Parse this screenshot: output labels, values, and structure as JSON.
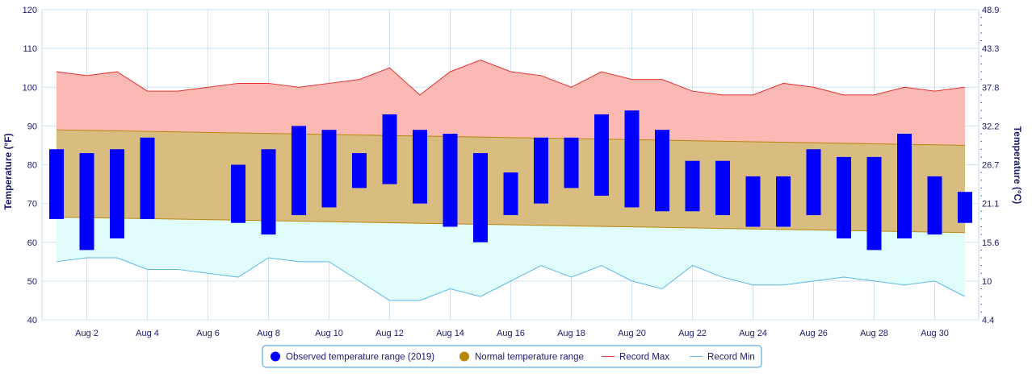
{
  "chart_data": {
    "type": "bar",
    "title": "",
    "x_labels": [
      "Aug 2",
      "Aug 4",
      "Aug 6",
      "Aug 8",
      "Aug 10",
      "Aug 12",
      "Aug 14",
      "Aug 16",
      "Aug 18",
      "Aug 20",
      "Aug 22",
      "Aug 24",
      "Aug 26",
      "Aug 28",
      "Aug 30"
    ],
    "x_label_days": [
      2,
      4,
      6,
      8,
      10,
      12,
      14,
      16,
      18,
      20,
      22,
      24,
      26,
      28,
      30
    ],
    "days": [
      1,
      2,
      3,
      4,
      5,
      6,
      7,
      8,
      9,
      10,
      11,
      12,
      13,
      14,
      15,
      16,
      17,
      18,
      19,
      20,
      21,
      22,
      23,
      24,
      25,
      26,
      27,
      28,
      29,
      30,
      31
    ],
    "yleft": {
      "label": "Temperature (°F)",
      "range": [
        40,
        120
      ],
      "ticks": [
        40,
        50,
        60,
        70,
        80,
        90,
        100,
        110,
        120
      ]
    },
    "yright": {
      "label": "Temperature (°C)",
      "ticks": [
        "4.4",
        "10",
        "15.6",
        "21.1",
        "26.7",
        "32.2",
        "37.8",
        "43.3",
        "48.9"
      ]
    },
    "series": [
      {
        "name": "Observed temperature range (2019)",
        "type": "columnrange",
        "color": "#0000ff",
        "data": [
          [
            66,
            84
          ],
          [
            58,
            83
          ],
          [
            61,
            84
          ],
          [
            66,
            87
          ],
          null,
          null,
          [
            65,
            80
          ],
          [
            62,
            84
          ],
          [
            67,
            90
          ],
          [
            69,
            89
          ],
          [
            74,
            83
          ],
          [
            75,
            93
          ],
          [
            70,
            89
          ],
          [
            64,
            88
          ],
          [
            60,
            83
          ],
          [
            67,
            78
          ],
          [
            70,
            87
          ],
          [
            74,
            87
          ],
          [
            72,
            93
          ],
          [
            69,
            94
          ],
          [
            68,
            89
          ],
          [
            68,
            81
          ],
          [
            67,
            81
          ],
          [
            64,
            77
          ],
          [
            64,
            77
          ],
          [
            67,
            84
          ],
          [
            61,
            82
          ],
          [
            58,
            82
          ],
          [
            61,
            88
          ],
          [
            62,
            77
          ],
          [
            65,
            73
          ]
        ]
      },
      {
        "name": "Normal temperature range",
        "type": "arearange",
        "color": "#b8860b",
        "low_start": 66.5,
        "low_end": 62.5,
        "high_start": 89,
        "high_end": 85
      },
      {
        "name": "Record Max",
        "type": "line",
        "color": "#e8312f",
        "data": [
          104,
          103,
          104,
          99,
          99,
          100,
          101,
          101,
          100,
          101,
          102,
          105,
          98,
          104,
          107,
          104,
          103,
          100,
          104,
          102,
          102,
          99,
          98,
          98,
          101,
          100,
          98,
          98,
          100,
          99,
          100
        ]
      },
      {
        "name": "Record Min",
        "type": "line",
        "color": "#5bb8e8",
        "data": [
          55,
          56,
          56,
          53,
          53,
          52,
          51,
          56,
          55,
          55,
          50,
          45,
          45,
          48,
          46,
          50,
          54,
          51,
          54,
          50,
          48,
          54,
          51,
          49,
          49,
          50,
          51,
          50,
          49,
          50,
          46
        ]
      }
    ],
    "legend_position": "bottom-center",
    "grid": true
  }
}
